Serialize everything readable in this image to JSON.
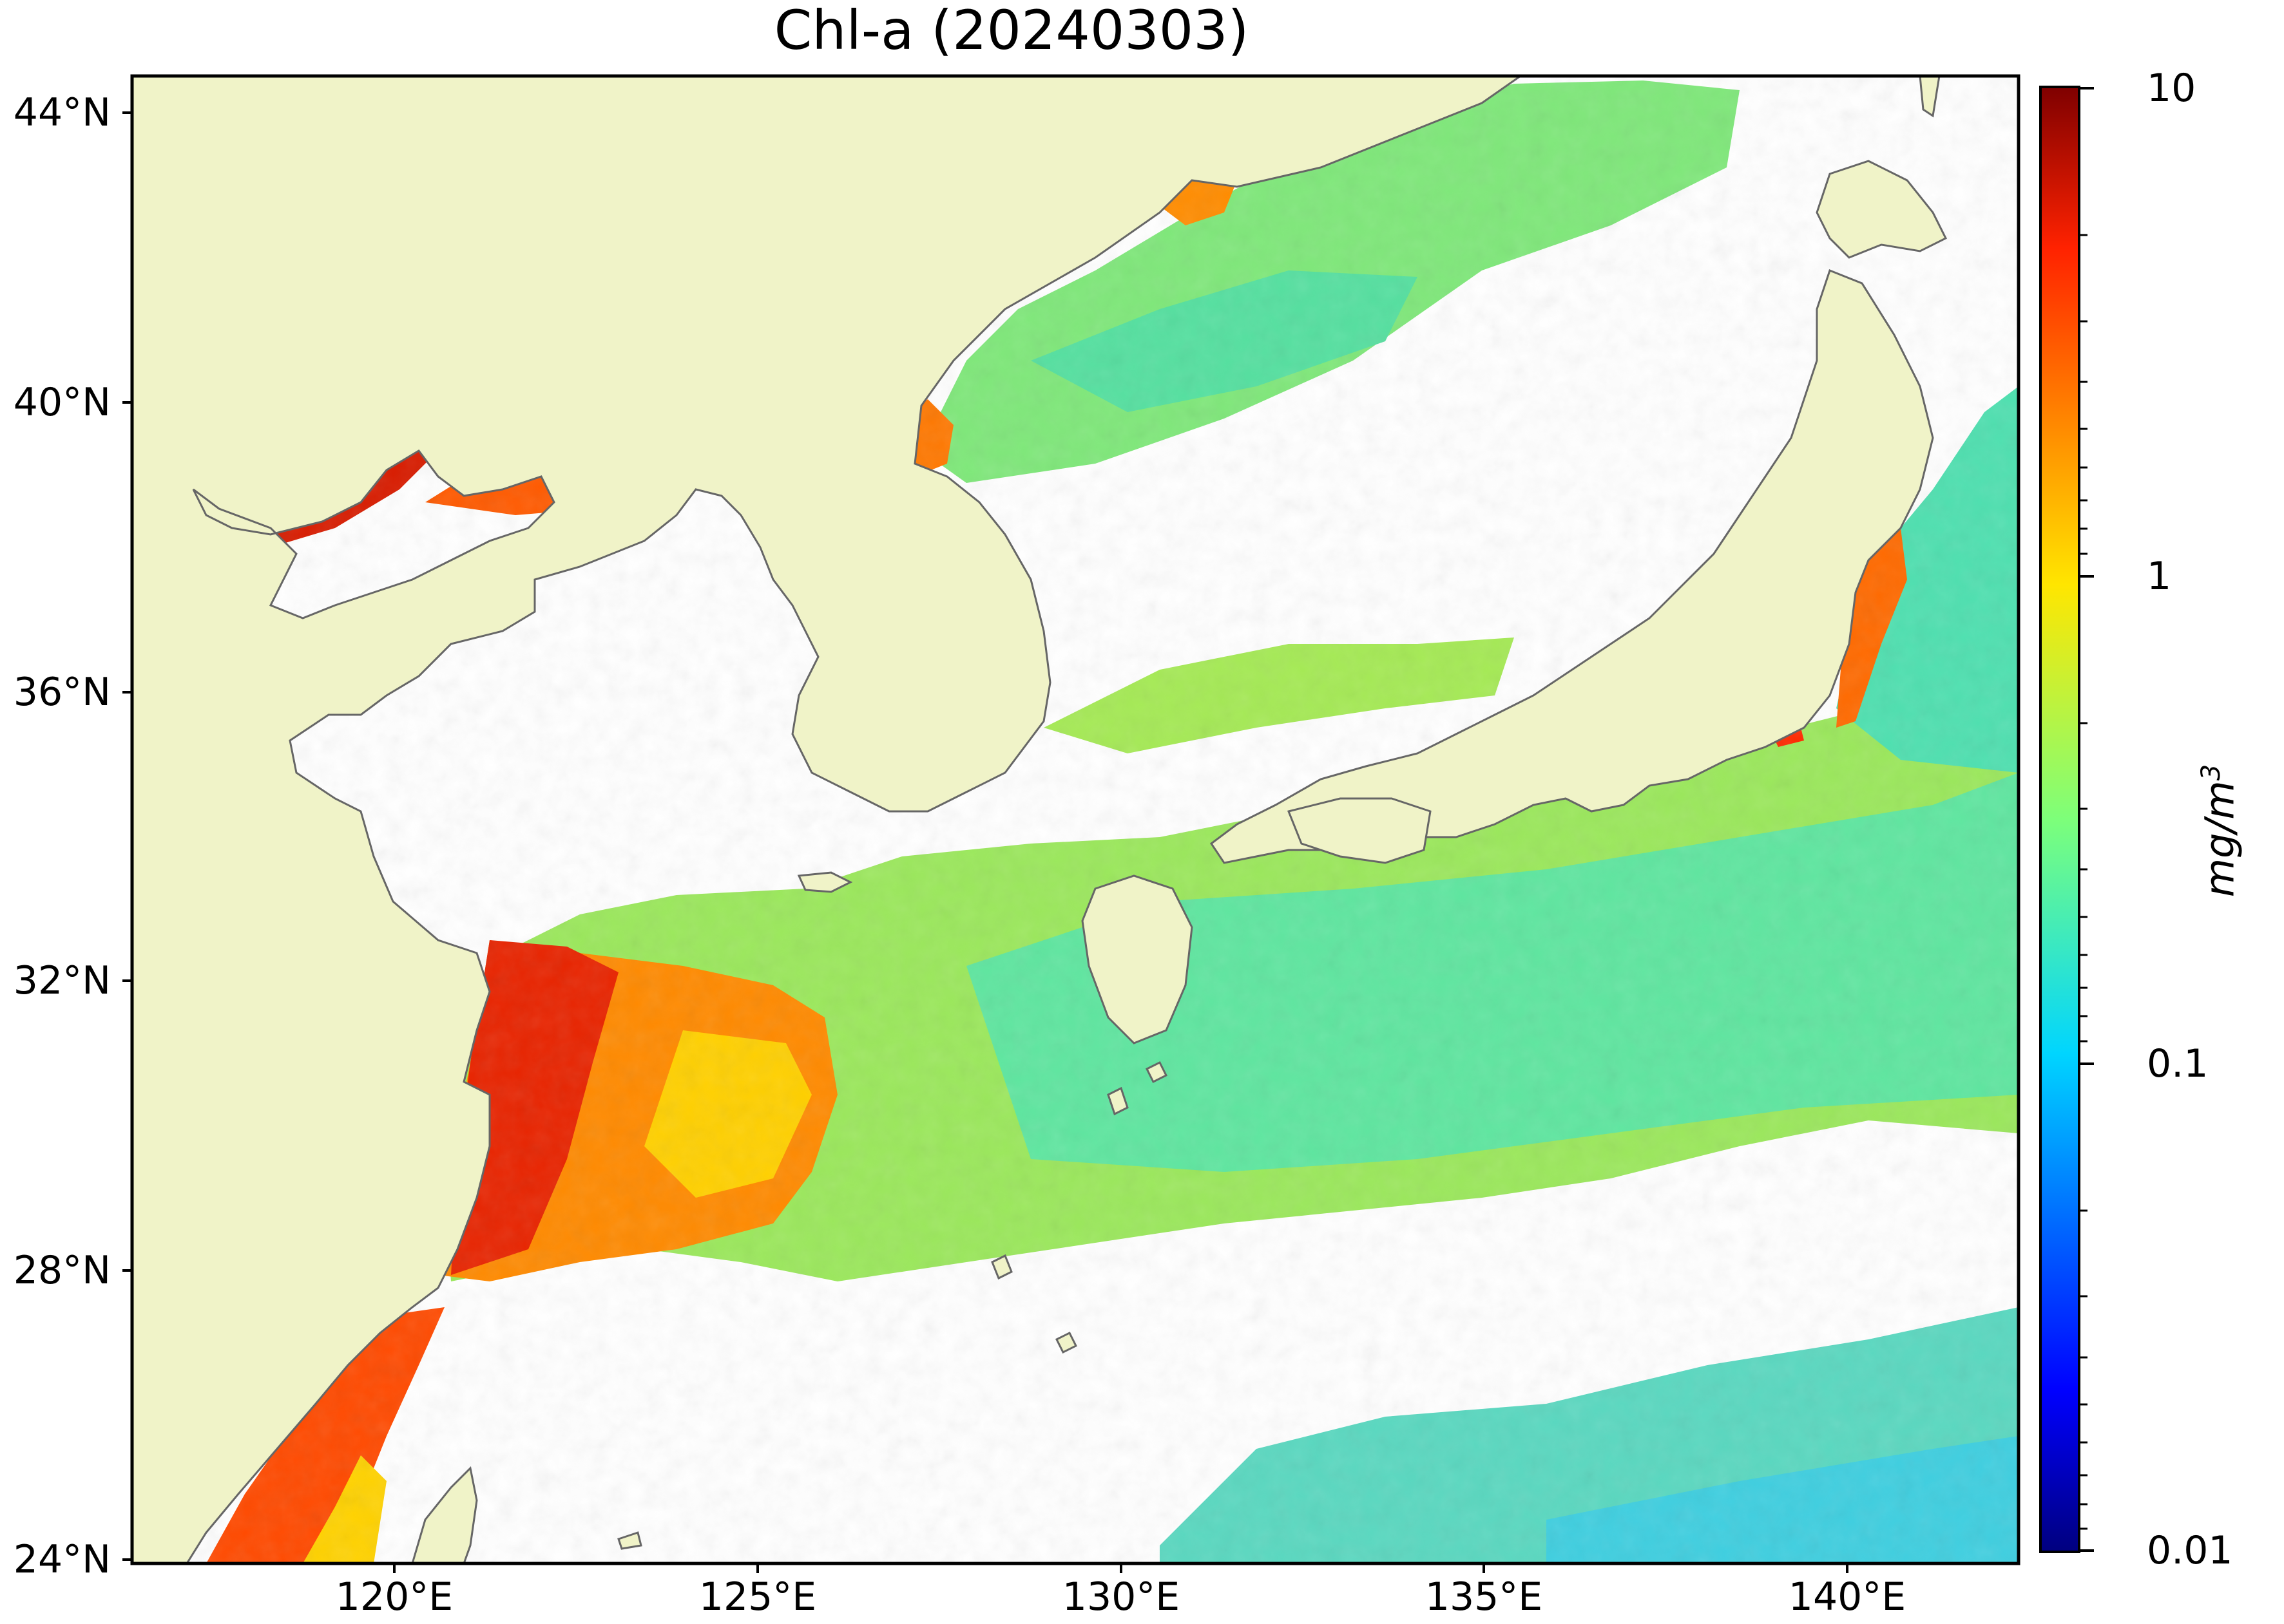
{
  "title": "Chl-a (20240303)",
  "map": {
    "lon_range_deg": [
      117,
      143
    ],
    "lat_range_deg": [
      24,
      44.5
    ],
    "land_color": "#f0f3c8",
    "coast_color": "#666666",
    "missing_color": "#ffffff"
  },
  "lat_labels": [
    "44°N",
    "40°N",
    "36°N",
    "32°N",
    "28°N",
    "24°N"
  ],
  "lon_labels": [
    "120°E",
    "125°E",
    "130°E",
    "135°E",
    "140°E"
  ],
  "colorbar": {
    "scale": "log",
    "range": [
      0.01,
      10
    ],
    "colormap": "jet",
    "tick_labels": [
      "10",
      "1",
      "0.1",
      "0.01"
    ],
    "unit_main": "mg/m",
    "unit_sup": "3"
  }
}
